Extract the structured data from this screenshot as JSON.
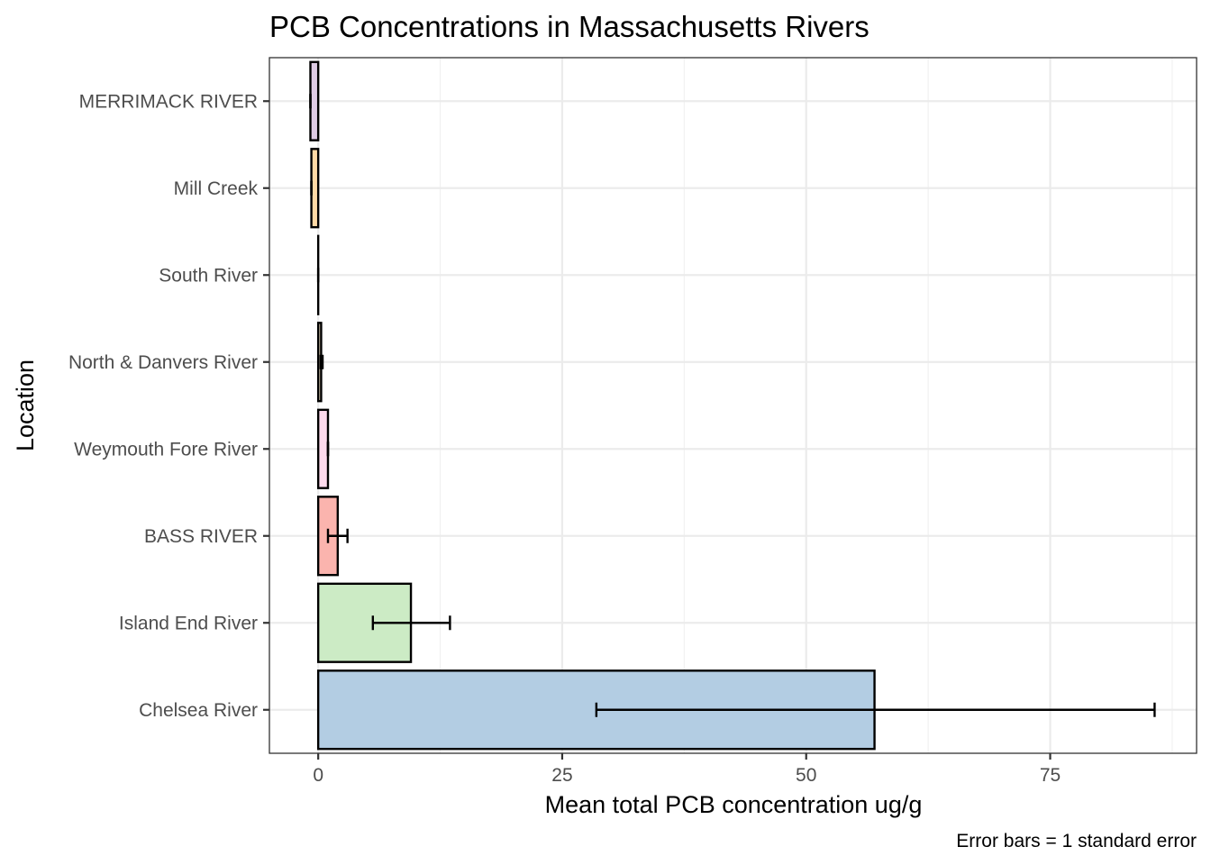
{
  "chart_data": {
    "type": "bar",
    "orientation": "horizontal",
    "title": "PCB Concentrations in Massachusetts Rivers",
    "xlabel": "Mean total PCB concentration ug/g",
    "ylabel": "Location",
    "caption": "Error bars = 1 standard error",
    "xlim": [
      -5,
      90
    ],
    "xticks": [
      0,
      25,
      50,
      75
    ],
    "xtick_labels": [
      "0",
      "25",
      "50",
      "75"
    ],
    "grid": true,
    "categories": [
      "Chelsea River",
      "Island End River",
      "BASS RIVER",
      "Weymouth Fore River",
      "North & Danvers River",
      "South River",
      "Mill Creek",
      "MERRIMACK RIVER"
    ],
    "values": [
      57.0,
      9.5,
      2.0,
      1.0,
      0.3,
      0.0,
      -0.7,
      -0.8
    ],
    "error_low": [
      28.5,
      5.6,
      1.0,
      1.0,
      0.25,
      0.0,
      -0.7,
      -0.8
    ],
    "error_high": [
      85.7,
      13.5,
      3.0,
      1.0,
      0.45,
      0.0,
      -0.7,
      -0.8
    ],
    "colors": [
      "#b3cde3",
      "#ccebc5",
      "#fbb4ae",
      "#fddaec",
      "#e5d8bd",
      "#ffffcc",
      "#fed9a6",
      "#decbe4"
    ]
  }
}
